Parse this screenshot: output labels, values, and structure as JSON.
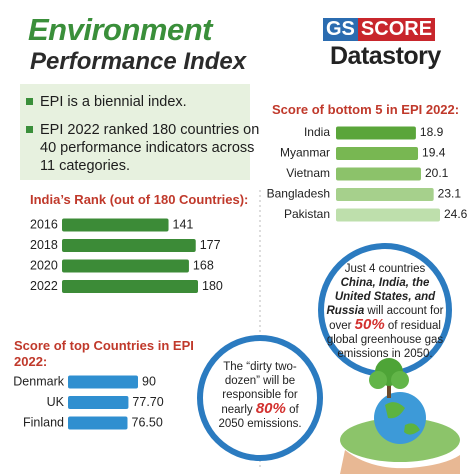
{
  "header": {
    "title": "Environment",
    "subtitle": "Performance Index"
  },
  "logo": {
    "gs": "GS",
    "score": "SCORE",
    "datastory": "Datastory"
  },
  "bullets": [
    "EPI is a biennial index.",
    "EPI 2022 ranked 180 countries on 40 performance indicators across 11 categories."
  ],
  "chart_data": [
    {
      "type": "bar",
      "orientation": "horizontal",
      "title": "Score of bottom 5 in EPI 2022:",
      "categories": [
        "India",
        "Myanmar",
        "Vietnam",
        "Bangladesh",
        "Pakistan"
      ],
      "values": [
        18.9,
        19.4,
        20.1,
        23.1,
        24.6
      ],
      "colors": [
        "#5aa53a",
        "#78b752",
        "#8cc26a",
        "#a6d08c",
        "#bedfac"
      ]
    },
    {
      "type": "bar",
      "orientation": "horizontal",
      "title": "India’s Rank (out of 180 Countries):",
      "categories": [
        "2016",
        "2018",
        "2020",
        "2022"
      ],
      "values": [
        141,
        177,
        168,
        180
      ],
      "color": "#3c8b37"
    },
    {
      "type": "bar",
      "orientation": "horizontal",
      "title": "Score of top Countries in EPI 2022:",
      "categories": [
        "Denmark",
        "UK",
        "Finland"
      ],
      "values": [
        90,
        77.7,
        76.5
      ],
      "value_labels": [
        "90",
        "77.70",
        "76.50"
      ],
      "color": "#2f8fd0"
    }
  ],
  "callouts": [
    {
      "parts": [
        "Just 4 countries",
        "China, India, the United States, and Russia",
        "will account for over",
        "50%",
        "of residual global greenhouse gas emissions in 2050."
      ]
    },
    {
      "parts": [
        "The “dirty two-dozen” will be responsible for nearly",
        "80%",
        "of 2050 emissions."
      ]
    }
  ]
}
